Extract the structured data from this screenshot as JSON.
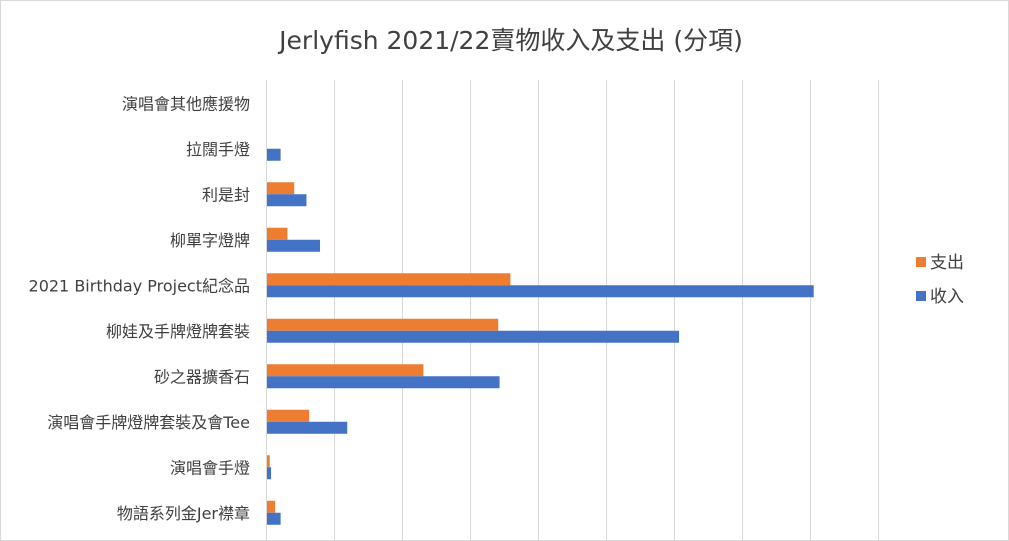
{
  "chart_data": {
    "type": "bar",
    "orientation": "horizontal",
    "title": "Jerlyfish 2021/22賣物收入及支出 (分項)",
    "xlabel": "",
    "ylabel": "",
    "categories": [
      "演唱會其他應援物",
      "拉闊手燈",
      "利是封",
      "柳單字燈牌",
      "2021 Birthday Project紀念品",
      "柳娃及手牌燈牌套裝",
      "砂之器擴香石",
      "演唱會手牌燈牌套裝及會Tee",
      "演唱會手燈",
      "物語系列金Jer襟章"
    ],
    "series": [
      {
        "name": "支出",
        "color": "#ED7D31",
        "values": [
          0,
          0,
          2000,
          1500,
          17900,
          17000,
          11500,
          3100,
          200,
          600
        ]
      },
      {
        "name": "收入",
        "color": "#4472C4",
        "values": [
          0,
          1000,
          2900,
          3900,
          40200,
          30300,
          17100,
          5900,
          300,
          1000
        ]
      }
    ],
    "xlim": [
      0,
      45000
    ],
    "gridlines": "vertical",
    "grid_color": "#D9D9D9",
    "legend_position": "right"
  }
}
